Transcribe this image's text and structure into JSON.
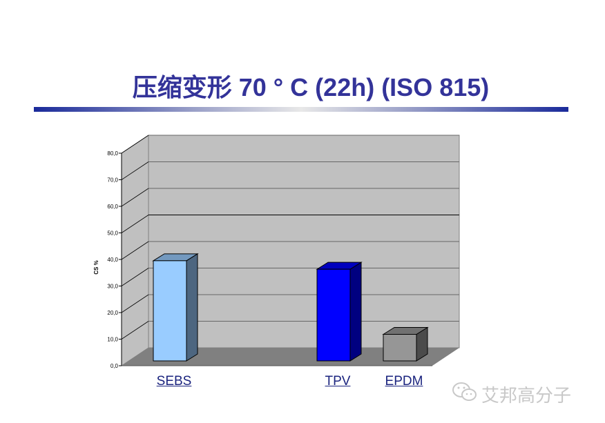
{
  "title": "压缩变形 70 ° C (22h) (ISO 815)",
  "watermark": "艾邦高分子",
  "chart_data": {
    "type": "bar",
    "style": "3d-column",
    "categories": [
      "SEBS",
      "TPV",
      "EPDM"
    ],
    "values": [
      37.7,
      34.5,
      10.0
    ],
    "colors": [
      "#99CCFF",
      "#0000FF",
      "#969696"
    ],
    "ylabel": "CS %",
    "ylim": [
      0,
      80
    ],
    "yticks": [
      "0,0",
      "10,0",
      "20,0",
      "30,0",
      "40,0",
      "50,0",
      "60,0",
      "70,0",
      "80,0"
    ],
    "grid": true,
    "wall_color": "#C0C0C0",
    "floor_color": "#808080"
  }
}
